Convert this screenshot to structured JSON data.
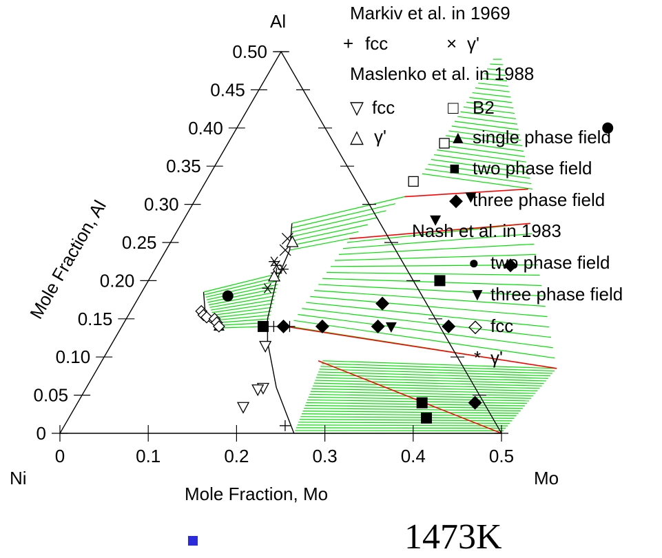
{
  "chart_data": {
    "type": "scatter",
    "subtype": "ternary-isothermal-section",
    "vertices": {
      "top": "Al",
      "left": "Ni",
      "right": "Mo"
    },
    "xlabel": "Mole Fraction, Mo",
    "ylabel": "Mole Fraction, Al",
    "xlim": [
      0,
      0.5
    ],
    "ylim": [
      0,
      0.5
    ],
    "x_ticks": [
      "0",
      "0.1",
      "0.2",
      "0.3",
      "0.4",
      "0.5"
    ],
    "y_ticks": [
      "0",
      "0.05",
      "0.10",
      "0.15",
      "0.20",
      "0.25",
      "0.30",
      "0.35",
      "0.40",
      "0.45",
      "0.50"
    ],
    "grid": false,
    "legend_position": "top-right",
    "legend": [
      {
        "group": "Markiv  et al. in 1969",
        "entries": [
          {
            "marker": "plus",
            "label": "fcc"
          },
          {
            "marker": "cross",
            "label": "γ'"
          }
        ]
      },
      {
        "group": "Maslenko et al. in 1988",
        "entries": [
          {
            "marker": "triangle-down-open",
            "label": "fcc"
          },
          {
            "marker": "square-open",
            "label": "B2"
          },
          {
            "marker": "triangle-up-open",
            "label": "γ'"
          },
          {
            "marker": "triangle-up-filled",
            "label": "single phase field"
          },
          {
            "marker": "square-filled",
            "label": "two phase field"
          },
          {
            "marker": "diamond-filled",
            "label": "three phase field"
          }
        ]
      },
      {
        "group": "Nash et al. in 1983",
        "entries": [
          {
            "marker": "circle-filled",
            "label": "two phase field"
          },
          {
            "marker": "triangle-down-filled",
            "label": "three phase field"
          },
          {
            "marker": "diamond-open",
            "label": "fcc"
          },
          {
            "marker": "asterisk",
            "label": "γ'"
          }
        ]
      }
    ],
    "series": [
      {
        "name": "Markiv et al. 1969 fcc",
        "marker": "plus",
        "points": [
          [
            0.14,
            0.21
          ],
          [
            0.172,
            0.14
          ],
          [
            0.19,
            0.14
          ],
          [
            0.25,
            0.01
          ]
        ]
      },
      {
        "name": "Markiv et al. 1969 γ'",
        "marker": "cross",
        "points": [
          [
            0.135,
            0.24
          ],
          [
            0.13,
            0.255
          ]
        ]
      },
      {
        "name": "Maslenko et al. 1988 fcc",
        "marker": "triangle-down-open",
        "points": [
          [
            0.2,
            0.06
          ],
          [
            0.195,
            0.058
          ],
          [
            0.19,
            0.035
          ],
          [
            0.175,
            0.115
          ]
        ]
      },
      {
        "name": "Maslenko et al. 1988 B2",
        "marker": "square-open",
        "points": [
          [
            0.245,
            0.38
          ],
          [
            0.235,
            0.33
          ]
        ]
      },
      {
        "name": "Maslenko et al. 1988 γ'",
        "marker": "triangle-up-open",
        "points": [
          [
            0.138,
            0.25
          ],
          [
            0.14,
            0.205
          ]
        ]
      },
      {
        "name": "Maslenko et al. 1988 single phase field",
        "marker": "triangle-up-filled",
        "points": [
          [
            0.11,
            0.14
          ]
        ]
      },
      {
        "name": "Maslenko et al. 1988 two phase field",
        "marker": "square-filled",
        "points": [
          [
            0.16,
            0.14
          ],
          [
            0.33,
            0.2
          ],
          [
            0.39,
            0.04
          ],
          [
            0.405,
            0.02
          ]
        ]
      },
      {
        "name": "Maslenko et al. 1988 three phase field",
        "marker": "diamond-filled",
        "points": [
          [
            0.183,
            0.14
          ],
          [
            0.227,
            0.14
          ],
          [
            0.29,
            0.14
          ],
          [
            0.37,
            0.14
          ],
          [
            0.28,
            0.17
          ],
          [
            0.4,
            0.22
          ],
          [
            0.45,
            0.04
          ]
        ]
      },
      {
        "name": "Nash et al. 1983 two phase field",
        "marker": "circle-filled",
        "points": [
          [
            0.1,
            0.18
          ],
          [
            0.42,
            0.4
          ]
        ]
      },
      {
        "name": "Nash et al. 1983 three phase field",
        "marker": "triangle-down-filled",
        "points": [
          [
            0.31,
            0.31
          ],
          [
            0.285,
            0.28
          ],
          [
            0.305,
            0.14
          ]
        ]
      },
      {
        "name": "Nash et al. 1983 fcc",
        "marker": "diamond-open",
        "points": [
          [
            0.08,
            0.16
          ],
          [
            0.085,
            0.155
          ],
          [
            0.09,
            0.152
          ],
          [
            0.1,
            0.15
          ],
          [
            0.105,
            0.145
          ],
          [
            0.11,
            0.14
          ]
        ]
      },
      {
        "name": "Nash et al. 1983 γ'",
        "marker": "asterisk",
        "points": [
          [
            0.135,
            0.22
          ],
          [
            0.145,
            0.215
          ],
          [
            0.13,
            0.225
          ],
          [
            0.14,
            0.19
          ]
        ]
      }
    ],
    "phase_boundaries": [
      [
        [
          0.125,
          0.275
        ],
        [
          0.14,
          0.24
        ],
        [
          0.145,
          0.2
        ],
        [
          0.16,
          0.15
        ],
        [
          0.175,
          0.12
        ],
        [
          0.215,
          0.06
        ],
        [
          0.265,
          0
        ]
      ],
      [
        [
          0.07,
          0.185
        ],
        [
          0.09,
          0.15
        ],
        [
          0.11,
          0.138
        ]
      ]
    ],
    "tie_lines_red": [
      [
        [
          0.235,
          0.31
        ],
        [
          0.37,
          0.32
        ]
      ],
      [
        [
          0.2,
          0.255
        ],
        [
          0.395,
          0.275
        ]
      ],
      [
        [
          0.185,
          0.14
        ],
        [
          0.52,
          0.085
        ]
      ],
      [
        [
          0.245,
          0.095
        ],
        [
          0.5,
          0
        ]
      ]
    ],
    "colors": {
      "tie_lines": "#00e000",
      "tie_triangle": "#ff0000",
      "boundary": "#000000",
      "bullet": "#2b2bdc"
    }
  },
  "caption": {
    "temperature": "1473K"
  }
}
